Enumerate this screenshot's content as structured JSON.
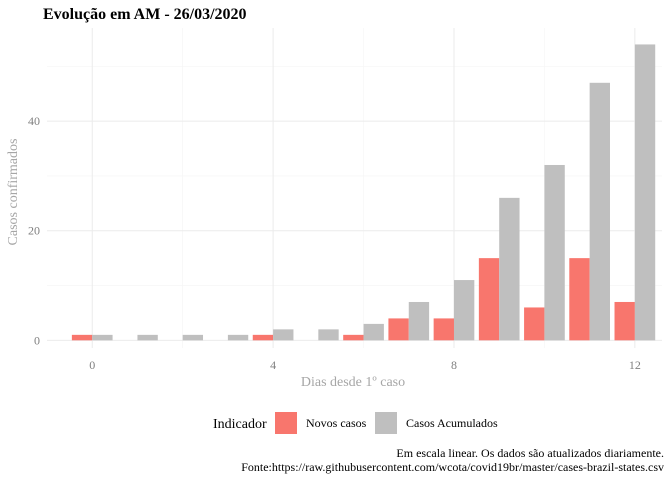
{
  "chart_data": {
    "type": "bar",
    "title": "Evolução em AM  -  26/03/2020",
    "xlabel": "Dias desde 1º caso",
    "ylabel": "Casos confirmados",
    "x": [
      0,
      1,
      2,
      3,
      4,
      5,
      6,
      7,
      8,
      9,
      10,
      11,
      12
    ],
    "xlim": [
      -1,
      12.6
    ],
    "ylim": [
      -1.4,
      57
    ],
    "x_ticks": [
      0,
      4,
      8,
      12
    ],
    "y_ticks": [
      0,
      20,
      40
    ],
    "grid": true,
    "legend_position": "bottom",
    "legend_title": "Indicador",
    "series": [
      {
        "name": "Novos casos",
        "color": "#F8766D",
        "values": [
          1,
          0,
          0,
          0,
          1,
          0,
          1,
          4,
          4,
          15,
          6,
          15,
          7
        ]
      },
      {
        "name": "Casos Acumulados",
        "color": "#BFBFBF",
        "values": [
          1,
          1,
          1,
          1,
          2,
          2,
          3,
          7,
          11,
          26,
          32,
          47,
          54
        ]
      }
    ],
    "caption_lines": [
      "Em escala linear. Os dados são atualizados diariamente.",
      "Fonte:https://raw.githubusercontent.com/wcota/covid19br/master/cases-brazil-states.csv"
    ]
  }
}
